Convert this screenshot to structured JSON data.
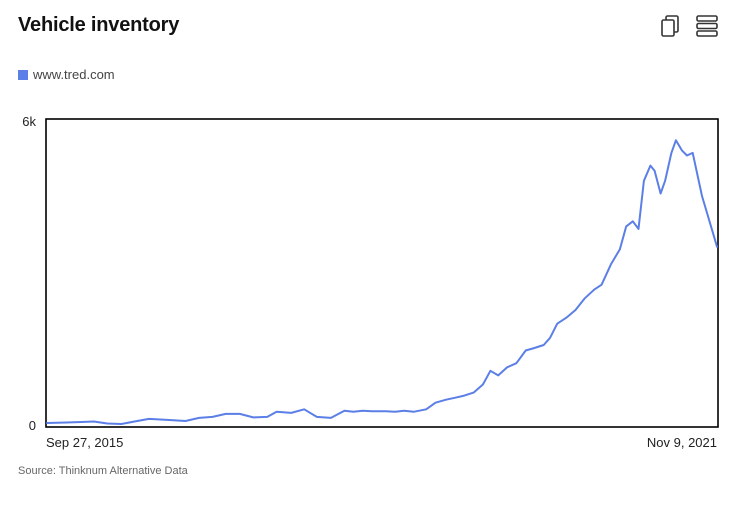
{
  "header": {
    "title": "Vehicle inventory",
    "copy_icon": "copy-icon",
    "menu_icon": "menu-icon"
  },
  "colors": {
    "series": "#5b7fe6",
    "frame": "#000000",
    "source_text": "#666666"
  },
  "footer": {
    "source": "Source: Thinknum Alternative Data"
  },
  "chart_data": {
    "type": "line",
    "title": "Vehicle inventory",
    "xlabel": "",
    "ylabel": "",
    "x_tick_labels": [
      "Sep 27, 2015",
      "Nov 9, 2021"
    ],
    "y_tick_labels": [
      "0",
      "6k"
    ],
    "xlim": [
      "2015-09-27",
      "2021-11-09"
    ],
    "ylim": [
      0,
      6000
    ],
    "grid": false,
    "legend_position": "top-left",
    "series": [
      {
        "name": "www.tred.com",
        "points": [
          [
            "2015-09-27",
            20
          ],
          [
            "2015-12-01",
            30
          ],
          [
            "2016-01-20",
            40
          ],
          [
            "2016-03-01",
            50
          ],
          [
            "2016-04-15",
            10
          ],
          [
            "2016-06-01",
            0
          ],
          [
            "2016-07-15",
            50
          ],
          [
            "2016-09-01",
            100
          ],
          [
            "2016-11-01",
            80
          ],
          [
            "2017-01-01",
            60
          ],
          [
            "2017-02-15",
            120
          ],
          [
            "2017-04-01",
            140
          ],
          [
            "2017-05-15",
            200
          ],
          [
            "2017-07-01",
            200
          ],
          [
            "2017-08-15",
            130
          ],
          [
            "2017-10-01",
            140
          ],
          [
            "2017-11-01",
            240
          ],
          [
            "2017-12-20",
            220
          ],
          [
            "2018-02-01",
            290
          ],
          [
            "2018-03-15",
            140
          ],
          [
            "2018-05-01",
            120
          ],
          [
            "2018-06-15",
            260
          ],
          [
            "2018-07-15",
            240
          ],
          [
            "2018-08-15",
            260
          ],
          [
            "2018-09-15",
            250
          ],
          [
            "2018-11-01",
            250
          ],
          [
            "2018-12-01",
            240
          ],
          [
            "2019-01-01",
            260
          ],
          [
            "2019-02-01",
            240
          ],
          [
            "2019-03-15",
            290
          ],
          [
            "2019-04-15",
            420
          ],
          [
            "2019-05-20",
            480
          ],
          [
            "2019-06-20",
            520
          ],
          [
            "2019-07-20",
            560
          ],
          [
            "2019-08-20",
            620
          ],
          [
            "2019-09-20",
            780
          ],
          [
            "2019-10-15",
            1050
          ],
          [
            "2019-11-10",
            960
          ],
          [
            "2019-12-10",
            1120
          ],
          [
            "2020-01-10",
            1200
          ],
          [
            "2020-02-10",
            1450
          ],
          [
            "2020-03-10",
            1500
          ],
          [
            "2020-04-10",
            1560
          ],
          [
            "2020-05-01",
            1700
          ],
          [
            "2020-05-25",
            1980
          ],
          [
            "2020-06-25",
            2100
          ],
          [
            "2020-07-25",
            2250
          ],
          [
            "2020-08-25",
            2480
          ],
          [
            "2020-09-25",
            2650
          ],
          [
            "2020-10-20",
            2750
          ],
          [
            "2020-11-20",
            3150
          ],
          [
            "2020-12-20",
            3450
          ],
          [
            "2021-01-10",
            3900
          ],
          [
            "2021-02-01",
            4000
          ],
          [
            "2021-02-20",
            3850
          ],
          [
            "2021-03-10",
            4800
          ],
          [
            "2021-04-01",
            5100
          ],
          [
            "2021-04-15",
            5000
          ],
          [
            "2021-05-05",
            4550
          ],
          [
            "2021-05-20",
            4800
          ],
          [
            "2021-06-10",
            5350
          ],
          [
            "2021-06-25",
            5600
          ],
          [
            "2021-07-15",
            5400
          ],
          [
            "2021-08-01",
            5300
          ],
          [
            "2021-08-20",
            5350
          ],
          [
            "2021-09-20",
            4500
          ],
          [
            "2021-10-20",
            3900
          ],
          [
            "2021-11-09",
            3500
          ]
        ]
      }
    ]
  }
}
